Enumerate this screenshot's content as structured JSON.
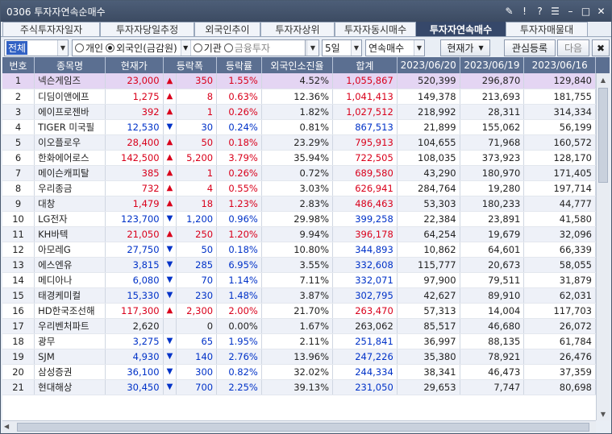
{
  "window": {
    "title": "0306 투자자연속순매수"
  },
  "tabs": [
    "주식투자자일자",
    "투자자당일추정",
    "외국인추이",
    "투자자상위",
    "투자자동시매수",
    "투자자연속매수",
    "투자자매물대"
  ],
  "active_tab": 5,
  "toolbar": {
    "market": "전체",
    "investor_radios": [
      "개인",
      "외국인(금감원)",
      "기관",
      "금융투자"
    ],
    "selected_radio": 1,
    "period": "5일",
    "mode": "연속매수",
    "price_btn": "현재가",
    "watch_btn": "관심등록",
    "next_btn": "다음",
    "close_icon": "✖"
  },
  "columns": [
    "번호",
    "종목명",
    "현재가",
    "등락폭",
    "등락률",
    "외국인소진율",
    "합계",
    "2023/06/20",
    "2023/06/19",
    "2023/06/16"
  ],
  "rows": [
    [
      "1",
      "넥슨게임즈",
      "23,000",
      "up",
      "350",
      "1.55%",
      "4.52%",
      "1,055,867",
      "520,399",
      "296,870",
      "129,840"
    ],
    [
      "2",
      "디딤이앤에프",
      "1,275",
      "up",
      "8",
      "0.63%",
      "12.36%",
      "1,041,413",
      "149,378",
      "213,693",
      "181,755"
    ],
    [
      "3",
      "에이프로젠바",
      "392",
      "up",
      "1",
      "0.26%",
      "1.82%",
      "1,027,512",
      "218,992",
      "28,311",
      "314,334"
    ],
    [
      "4",
      "TIGER 미국필",
      "12,530",
      "dn",
      "30",
      "0.24%",
      "0.81%",
      "867,513",
      "21,899",
      "155,062",
      "56,199"
    ],
    [
      "5",
      "이오플로우",
      "28,400",
      "up",
      "50",
      "0.18%",
      "23.29%",
      "795,913",
      "104,655",
      "71,968",
      "160,572"
    ],
    [
      "6",
      "한화에어로스",
      "142,500",
      "up",
      "5,200",
      "3.79%",
      "35.94%",
      "722,505",
      "108,035",
      "373,923",
      "128,170"
    ],
    [
      "7",
      "메이슨캐피탈",
      "385",
      "up",
      "1",
      "0.26%",
      "0.72%",
      "689,580",
      "43,290",
      "180,970",
      "171,405"
    ],
    [
      "8",
      "우리종금",
      "732",
      "up",
      "4",
      "0.55%",
      "3.03%",
      "626,941",
      "284,764",
      "19,280",
      "197,714"
    ],
    [
      "9",
      "대창",
      "1,479",
      "up",
      "18",
      "1.23%",
      "2.83%",
      "486,463",
      "53,303",
      "180,233",
      "44,777"
    ],
    [
      "10",
      "LG전자",
      "123,700",
      "dn",
      "1,200",
      "0.96%",
      "29.98%",
      "399,258",
      "22,384",
      "23,891",
      "41,580"
    ],
    [
      "11",
      "KH바텍",
      "21,050",
      "up",
      "250",
      "1.20%",
      "9.94%",
      "396,178",
      "64,254",
      "19,679",
      "32,096"
    ],
    [
      "12",
      "아모레G",
      "27,750",
      "dn",
      "50",
      "0.18%",
      "10.80%",
      "344,893",
      "10,862",
      "64,601",
      "66,339"
    ],
    [
      "13",
      "에스엔유",
      "3,815",
      "dn",
      "285",
      "6.95%",
      "3.55%",
      "332,608",
      "115,777",
      "20,673",
      "58,055"
    ],
    [
      "14",
      "메디아나",
      "6,080",
      "dn",
      "70",
      "1.14%",
      "7.11%",
      "332,071",
      "97,900",
      "79,511",
      "31,879"
    ],
    [
      "15",
      "태경케미컬",
      "15,330",
      "dn",
      "230",
      "1.48%",
      "3.87%",
      "302,795",
      "42,627",
      "89,910",
      "62,031"
    ],
    [
      "16",
      "HD한국조선해",
      "117,300",
      "up",
      "2,300",
      "2.00%",
      "21.70%",
      "263,470",
      "57,313",
      "14,004",
      "117,703"
    ],
    [
      "17",
      "우리벤처파트",
      "2,620",
      "flat",
      "0",
      "0.00%",
      "1.67%",
      "263,062",
      "85,517",
      "46,680",
      "26,072"
    ],
    [
      "18",
      "광무",
      "3,275",
      "dn",
      "65",
      "1.95%",
      "2.11%",
      "251,841",
      "36,997",
      "88,135",
      "61,784"
    ],
    [
      "19",
      "SJM",
      "4,930",
      "dn",
      "140",
      "2.76%",
      "13.96%",
      "247,226",
      "35,380",
      "78,921",
      "26,476"
    ],
    [
      "20",
      "삼성증권",
      "36,100",
      "dn",
      "300",
      "0.82%",
      "32.02%",
      "244,334",
      "38,341",
      "46,473",
      "37,359"
    ],
    [
      "21",
      "현대해상",
      "30,450",
      "dn",
      "700",
      "2.25%",
      "39.13%",
      "231,050",
      "29,653",
      "7,747",
      "80,698"
    ]
  ]
}
